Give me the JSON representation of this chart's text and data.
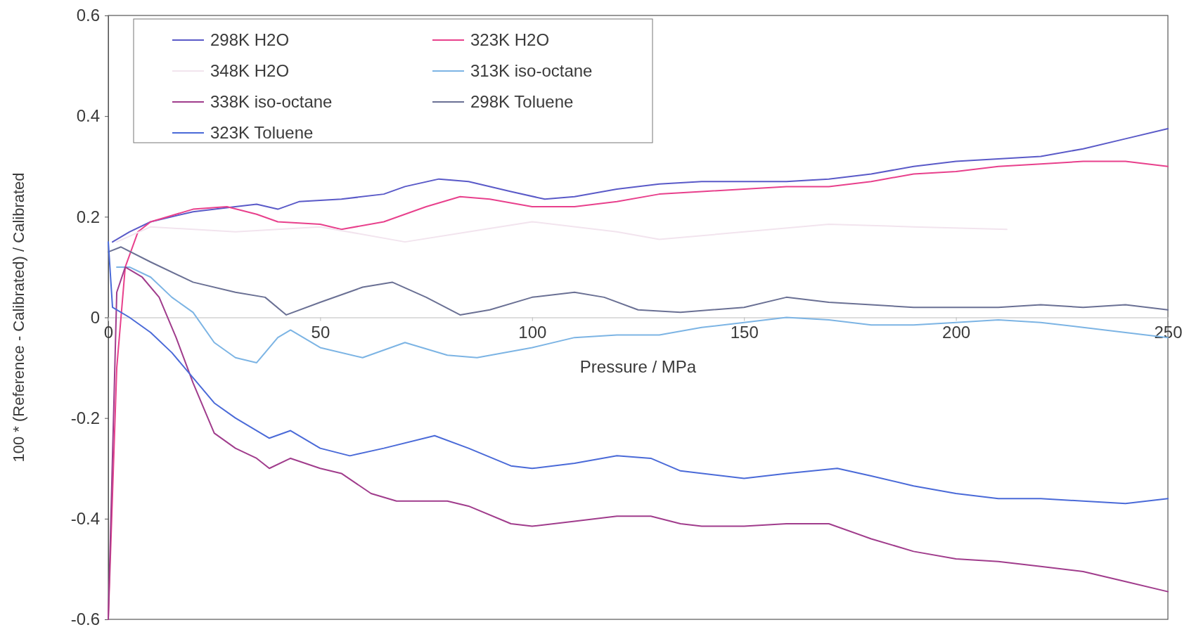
{
  "chart_data": {
    "type": "line",
    "xlabel": "Pressure / MPa",
    "ylabel": "100 * (Reference - Calibrated) / Calibrated",
    "xlim": [
      0,
      250
    ],
    "ylim": [
      -0.6,
      0.6
    ],
    "xticks": [
      0,
      50,
      100,
      150,
      200,
      250
    ],
    "yticks": [
      -0.6,
      -0.4,
      -0.2,
      0,
      0.2,
      0.4,
      0.6
    ],
    "grid": false,
    "legend": "top",
    "marker": "none",
    "line_style": "solid",
    "series": [
      {
        "name": "298K H2O",
        "color": "#5a5ac8",
        "x": [
          1,
          5,
          10,
          20,
          30,
          35,
          40,
          45,
          55,
          65,
          70,
          78,
          85,
          95,
          103,
          110,
          120,
          130,
          140,
          150,
          160,
          170,
          180,
          190,
          200,
          210,
          220,
          230,
          240,
          250
        ],
        "values": [
          0.15,
          0.17,
          0.19,
          0.21,
          0.22,
          0.225,
          0.215,
          0.23,
          0.235,
          0.245,
          0.26,
          0.275,
          0.27,
          0.25,
          0.235,
          0.24,
          0.255,
          0.265,
          0.27,
          0.27,
          0.27,
          0.275,
          0.285,
          0.3,
          0.31,
          0.315,
          0.32,
          0.335,
          0.355,
          0.375
        ]
      },
      {
        "name": "323K H2O",
        "color": "#e8408c",
        "x": [
          0,
          2,
          4,
          7,
          10,
          20,
          28,
          35,
          40,
          50,
          55,
          65,
          75,
          83,
          90,
          100,
          110,
          120,
          130,
          140,
          150,
          160,
          170,
          180,
          190,
          200,
          210,
          220,
          230,
          240,
          250
        ],
        "values": [
          -0.6,
          -0.1,
          0.1,
          0.17,
          0.19,
          0.215,
          0.22,
          0.205,
          0.19,
          0.185,
          0.175,
          0.19,
          0.22,
          0.24,
          0.235,
          0.22,
          0.22,
          0.23,
          0.245,
          0.25,
          0.255,
          0.26,
          0.26,
          0.27,
          0.285,
          0.29,
          0.3,
          0.305,
          0.31,
          0.31,
          0.3
        ]
      },
      {
        "name": "348K H2O",
        "color": "#f2e4ee",
        "x": [
          2,
          10,
          30,
          50,
          70,
          85,
          100,
          120,
          130,
          150,
          170,
          190,
          212
        ],
        "values": [
          0.15,
          0.18,
          0.17,
          0.18,
          0.15,
          0.17,
          0.19,
          0.17,
          0.155,
          0.17,
          0.185,
          0.18,
          0.175
        ]
      },
      {
        "name": "313K iso-octane",
        "color": "#7cb4e4",
        "x": [
          2,
          5,
          10,
          15,
          20,
          25,
          30,
          35,
          40,
          43,
          50,
          60,
          70,
          80,
          87,
          100,
          110,
          120,
          130,
          140,
          150,
          160,
          170,
          180,
          190,
          200,
          210,
          220,
          230,
          240,
          250
        ],
        "values": [
          0.1,
          0.1,
          0.08,
          0.04,
          0.01,
          -0.05,
          -0.08,
          -0.09,
          -0.04,
          -0.025,
          -0.06,
          -0.08,
          -0.05,
          -0.075,
          -0.08,
          -0.06,
          -0.04,
          -0.035,
          -0.035,
          -0.02,
          -0.01,
          0,
          -0.005,
          -0.015,
          -0.015,
          -0.01,
          -0.005,
          -0.01,
          -0.02,
          -0.03,
          -0.04
        ]
      },
      {
        "name": "338K iso-octane",
        "color": "#a03c8c",
        "x": [
          0,
          2,
          4,
          8,
          12,
          16,
          20,
          25,
          30,
          35,
          38,
          43,
          50,
          55,
          62,
          68,
          80,
          85,
          95,
          100,
          110,
          120,
          128,
          135,
          140,
          150,
          160,
          170,
          180,
          190,
          200,
          210,
          220,
          230,
          240,
          250
        ],
        "values": [
          -0.6,
          0.05,
          0.1,
          0.08,
          0.04,
          -0.04,
          -0.13,
          -0.23,
          -0.26,
          -0.28,
          -0.3,
          -0.28,
          -0.3,
          -0.31,
          -0.35,
          -0.365,
          -0.365,
          -0.375,
          -0.41,
          -0.415,
          -0.405,
          -0.395,
          -0.395,
          -0.41,
          -0.415,
          -0.415,
          -0.41,
          -0.41,
          -0.44,
          -0.465,
          -0.48,
          -0.485,
          -0.495,
          -0.505,
          -0.525,
          -0.545
        ]
      },
      {
        "name": "298K Toluene",
        "color": "#6a7094",
        "x": [
          0,
          3,
          10,
          20,
          30,
          37,
          42,
          50,
          60,
          67,
          75,
          83,
          90,
          100,
          110,
          117,
          125,
          135,
          150,
          160,
          170,
          180,
          190,
          200,
          210,
          220,
          230,
          240,
          250
        ],
        "values": [
          0.13,
          0.14,
          0.11,
          0.07,
          0.05,
          0.04,
          0.005,
          0.03,
          0.06,
          0.07,
          0.04,
          0.005,
          0.015,
          0.04,
          0.05,
          0.04,
          0.015,
          0.01,
          0.02,
          0.04,
          0.03,
          0.025,
          0.02,
          0.02,
          0.02,
          0.025,
          0.02,
          0.025,
          0.015
        ]
      },
      {
        "name": "323K Toluene",
        "color": "#4a6ad8",
        "x": [
          0,
          1,
          5,
          10,
          15,
          20,
          25,
          30,
          38,
          43,
          50,
          57,
          65,
          77,
          85,
          95,
          100,
          110,
          120,
          128,
          135,
          150,
          160,
          172,
          180,
          190,
          200,
          210,
          220,
          230,
          240,
          250
        ],
        "values": [
          0.15,
          0.02,
          0,
          -0.03,
          -0.07,
          -0.12,
          -0.17,
          -0.2,
          -0.24,
          -0.225,
          -0.26,
          -0.275,
          -0.26,
          -0.235,
          -0.26,
          -0.295,
          -0.3,
          -0.29,
          -0.275,
          -0.28,
          -0.305,
          -0.32,
          -0.31,
          -0.3,
          -0.315,
          -0.335,
          -0.35,
          -0.36,
          -0.36,
          -0.365,
          -0.37,
          -0.36
        ]
      }
    ]
  }
}
